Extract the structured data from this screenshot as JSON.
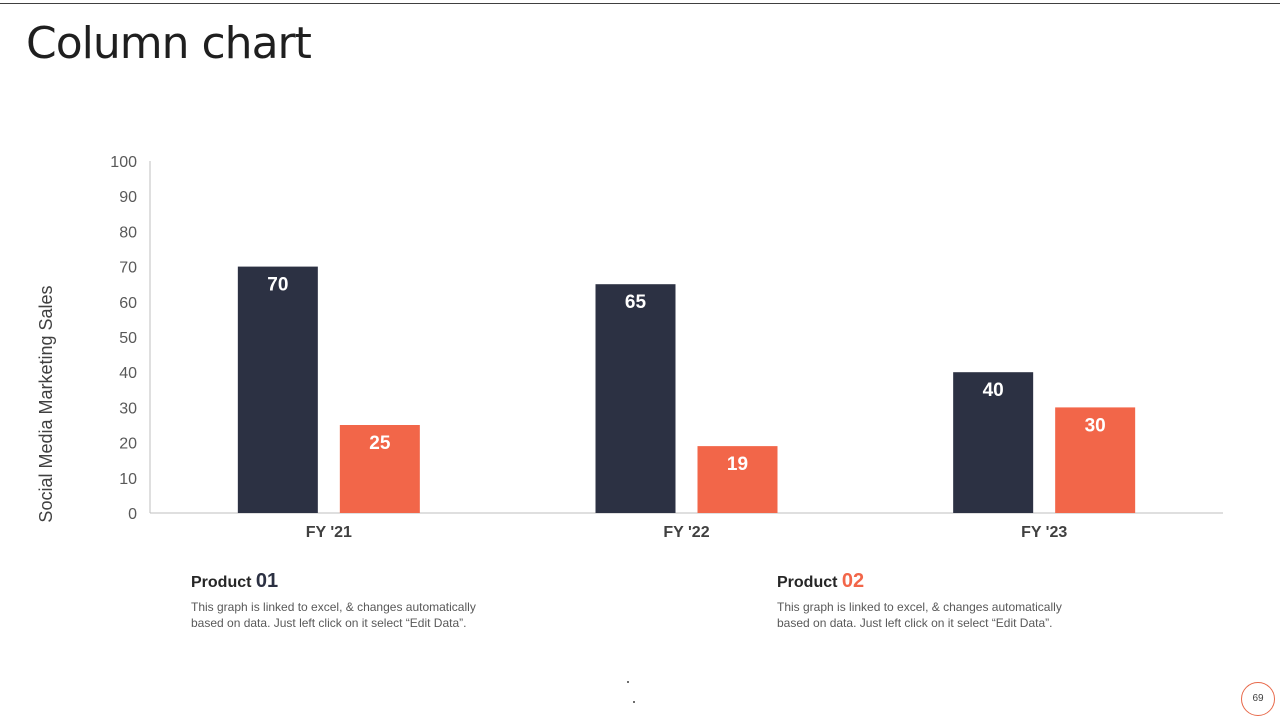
{
  "page": {
    "title": "Column chart",
    "page_number": "69"
  },
  "chart_data": {
    "type": "bar",
    "categories": [
      "FY '21",
      "FY '22",
      "FY '23"
    ],
    "series": [
      {
        "key": "product_01",
        "values": [
          70,
          65,
          40
        ],
        "color": "#2c3143"
      },
      {
        "key": "product_02",
        "values": [
          25,
          19,
          30
        ],
        "color": "#f26649"
      }
    ],
    "ylabel": "Social Media  Marketing Sales",
    "xlabel": "",
    "ylim": [
      0,
      100
    ],
    "yticks": [
      0,
      10,
      20,
      30,
      40,
      50,
      60,
      70,
      80,
      90,
      100
    ],
    "grid": false,
    "data_labels": true
  },
  "products": [
    {
      "label": "Product",
      "number": "01",
      "number_color": "#2c3143",
      "description": "This graph is linked to excel, & changes automatically based on data. Just left click on it select “Edit Data”."
    },
    {
      "label": "Product",
      "number": "02",
      "number_color": "#f26649",
      "description": "This graph is linked to excel, & changes automatically based on data. Just left click on it select “Edit Data”."
    }
  ]
}
